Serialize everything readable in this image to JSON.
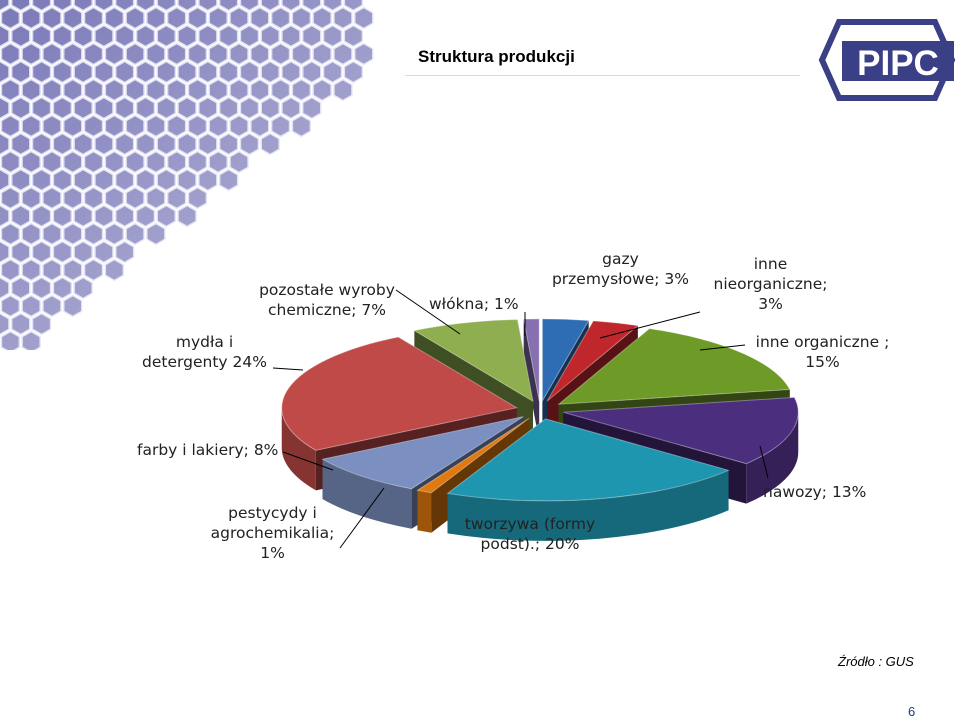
{
  "slide": {
    "title": "Struktura produkcji",
    "source": "Źródło : GUS",
    "page_number": "6"
  },
  "logo": {
    "text": "PIPC",
    "color": "#3b3f86"
  },
  "chart_data": {
    "type": "pie",
    "three_d": true,
    "exploded": true,
    "legend": "none",
    "categories": [
      "gazy przemysłowe",
      "inne nieorganiczne",
      "inne organiczne",
      "nawozy",
      "tworzywa (formy podst).",
      "pestycydy i agrochemikalia",
      "farby i lakiery",
      "mydła i detergenty",
      "pozostałe wyroby chemiczne",
      "włókna"
    ],
    "values": [
      3,
      3,
      15,
      13,
      20,
      1,
      8,
      24,
      7,
      1
    ],
    "colors": [
      "#2e6db4",
      "#c0272d",
      "#6e9a28",
      "#4b2f7e",
      "#1f96b0",
      "#e07a10",
      "#7b8fc0",
      "#c04a48",
      "#8fae4f",
      "#8670b0"
    ],
    "labels": [
      "gazy\nprzemysłowe; 3%",
      "inne\nnieorganiczne;\n3%",
      "inne organiczne ;\n15%",
      "nawozy; 13%",
      "tworzywa (formy\npodst).; 20%",
      "pestycydy i\nagrochemikalia;\n1%",
      "farby i lakiery; 8%",
      "mydła i\ndetergenty 24%",
      "pozostałe wyroby\nchemiczne; 7%",
      "włókna; 1%"
    ]
  }
}
